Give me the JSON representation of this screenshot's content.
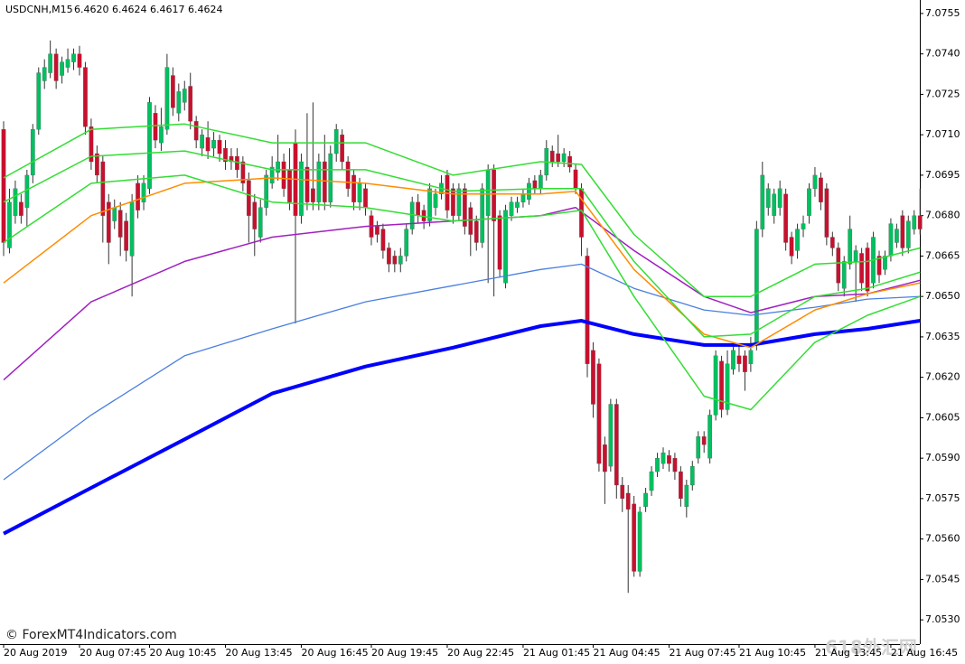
{
  "chart_data": {
    "type": "candlestick",
    "title": "USDCNH,M15",
    "quote": [
      "6.4620",
      "6.4624",
      "6.4617",
      "6.4624"
    ],
    "watermark": "© ForexMT4Indicators.com",
    "logo": "618外汇网",
    "up_color": "#00c060",
    "down_color": "#c8102e",
    "wick_color": "#333333",
    "ylim": [
      7.0521,
      7.076
    ],
    "yticks": [
      {
        "value": 7.053,
        "label": "7.0530"
      },
      7.0545,
      {
        "value": 7.056,
        "label": "7.0560"
      },
      7.0575,
      {
        "value": 7.059,
        "label": "7.0590"
      },
      7.0605,
      {
        "value": 7.062,
        "label": "7.0620"
      },
      7.0635,
      {
        "value": 7.065,
        "label": "7.0650"
      },
      7.0665,
      {
        "value": 7.068,
        "label": "7.0680"
      },
      7.0695,
      {
        "value": 7.071,
        "label": "7.0710"
      },
      7.0725,
      {
        "value": 7.074,
        "label": "7.0740"
      },
      7.0755
    ],
    "categories": [
      "20 Aug 2019",
      null,
      null,
      null,
      null,
      null,
      null,
      null,
      null,
      null,
      null,
      null,
      null,
      "20 Aug 07:45",
      null,
      null,
      null,
      null,
      null,
      null,
      null,
      null,
      null,
      null,
      null,
      "20 Aug 10:45",
      null,
      null,
      null,
      null,
      null,
      null,
      null,
      null,
      null,
      null,
      null,
      null,
      "20 Aug 13:45",
      null,
      null,
      null,
      null,
      null,
      null,
      null,
      null,
      null,
      null,
      null,
      null,
      "20 Aug 16:45",
      null,
      null,
      null,
      null,
      null,
      null,
      null,
      null,
      null,
      null,
      null,
      "20 Aug 19:45",
      null,
      null,
      null,
      null,
      null,
      null,
      null,
      null,
      null,
      null,
      null,
      null,
      "20 Aug 22:45",
      null,
      null,
      null,
      null,
      null,
      null,
      null,
      null,
      null,
      null,
      null,
      null,
      "21 Aug 01:45",
      null,
      null,
      null,
      null,
      null,
      null,
      null,
      null,
      null,
      null,
      null,
      "21 Aug 04:45",
      null,
      null,
      null,
      null,
      null,
      null,
      null,
      null,
      null,
      null,
      null,
      null,
      "21 Aug 07:45",
      null,
      null,
      null,
      null,
      null,
      null,
      null,
      null,
      null,
      null,
      null,
      "21 Aug 10:45",
      null,
      null,
      null,
      null,
      null,
      null,
      null,
      null,
      null,
      null,
      null,
      null,
      "21 Aug 13:45",
      null,
      null,
      null,
      null,
      null,
      null,
      null,
      null,
      null,
      null,
      null,
      null,
      "21 Aug 16:45",
      null,
      null,
      null,
      null,
      null
    ],
    "ohlc": [
      [
        7.0712,
        7.0715,
        7.0665,
        7.067
      ],
      [
        7.0668,
        7.069,
        7.0666,
        7.0685
      ],
      [
        7.068,
        7.0693,
        7.0677,
        7.069
      ],
      [
        7.0685,
        7.0688,
        7.0677,
        7.068
      ],
      [
        7.0683,
        7.0697,
        7.0676,
        7.0695
      ],
      [
        7.0695,
        7.0714,
        7.0692,
        7.0712
      ],
      [
        7.0712,
        7.0735,
        7.071,
        7.0733
      ],
      [
        7.073,
        7.0738,
        7.0727,
        7.0735
      ],
      [
        7.0733,
        7.0745,
        7.0731,
        7.074
      ],
      [
        7.074,
        7.0742,
        7.0727,
        7.073
      ],
      [
        7.0732,
        7.0739,
        7.0729,
        7.0737
      ],
      [
        7.0735,
        7.0742,
        7.0733,
        7.0738
      ],
      [
        7.0737,
        7.0742,
        7.0734,
        7.074
      ],
      [
        7.074,
        7.0743,
        7.0732,
        7.0735
      ],
      [
        7.0735,
        7.0737,
        7.071,
        7.0713
      ],
      [
        7.0713,
        7.0716,
        7.0697,
        7.07
      ],
      [
        7.0703,
        7.0706,
        7.0692,
        7.0695
      ],
      [
        7.07,
        7.0702,
        7.067,
        7.068
      ],
      [
        7.0685,
        7.0688,
        7.0662,
        7.067
      ],
      [
        7.0678,
        7.0686,
        7.0675,
        7.0683
      ],
      [
        7.0682,
        7.0685,
        7.0665,
        7.0672
      ],
      [
        7.0678,
        7.0681,
        7.0663,
        7.0667
      ],
      [
        7.0665,
        7.0688,
        7.065,
        7.0685
      ],
      [
        7.0692,
        7.0695,
        7.0679,
        7.0682
      ],
      [
        7.0685,
        7.0695,
        7.0682,
        7.0692
      ],
      [
        7.069,
        7.0724,
        7.0688,
        7.0722
      ],
      [
        7.0718,
        7.0721,
        7.0705,
        7.0708
      ],
      [
        7.0707,
        7.072,
        7.0704,
        7.0713
      ],
      [
        7.0712,
        7.074,
        7.071,
        7.0735
      ],
      [
        7.0732,
        7.0735,
        7.0717,
        7.072
      ],
      [
        7.0718,
        7.0729,
        7.0715,
        7.0726
      ],
      [
        7.0722,
        7.073,
        7.0719,
        7.0727
      ],
      [
        7.0728,
        7.0733,
        7.0712,
        7.0715
      ],
      [
        7.0715,
        7.0717,
        7.0705,
        7.0708
      ],
      [
        7.0705,
        7.0712,
        7.0702,
        7.071
      ],
      [
        7.0709,
        7.0715,
        7.0701,
        7.0704
      ],
      [
        7.0705,
        7.0711,
        7.0702,
        7.0708
      ],
      [
        7.0708,
        7.071,
        7.07,
        7.0703
      ],
      [
        7.0705,
        7.0708,
        7.0697,
        7.07
      ],
      [
        7.0702,
        7.0705,
        7.0697,
        7.07
      ],
      [
        7.0702,
        7.0705,
        7.0694,
        7.0697
      ],
      [
        7.07,
        7.0702,
        7.0689,
        7.0692
      ],
      [
        7.0693,
        7.0696,
        7.067,
        7.068
      ],
      [
        7.0685,
        7.0688,
        7.0665,
        7.0675
      ],
      [
        7.0672,
        7.0686,
        7.067,
        7.0683
      ],
      [
        7.0683,
        7.0697,
        7.068,
        7.0695
      ],
      [
        7.0692,
        7.0702,
        7.069,
        7.0698
      ],
      [
        7.0696,
        7.071,
        7.0693,
        7.07
      ],
      [
        7.07,
        7.0703,
        7.0687,
        7.069
      ],
      [
        7.0697,
        7.0705,
        7.0682,
        7.0685
      ],
      [
        7.0707,
        7.0712,
        7.064,
        7.068
      ],
      [
        7.068,
        7.0703,
        7.0677,
        7.07
      ],
      [
        7.0698,
        7.0718,
        7.0682,
        7.0685
      ],
      [
        7.069,
        7.0722,
        7.0682,
        7.0685
      ],
      [
        7.0685,
        7.0703,
        7.0682,
        7.07
      ],
      [
        7.07,
        7.071,
        7.0682,
        7.0685
      ],
      [
        7.0685,
        7.0706,
        7.0683,
        7.0703
      ],
      [
        7.0703,
        7.0714,
        7.07,
        7.0712
      ],
      [
        7.071,
        7.0712,
        7.0697,
        7.07
      ],
      [
        7.07,
        7.0702,
        7.0687,
        7.069
      ],
      [
        7.0695,
        7.0697,
        7.0682,
        7.0685
      ],
      [
        7.0685,
        7.0694,
        7.0682,
        7.0692
      ],
      [
        7.069,
        7.0692,
        7.068,
        7.0683
      ],
      [
        7.068,
        7.0682,
        7.0669,
        7.0672
      ],
      [
        7.0676,
        7.0678,
        7.067,
        7.0673
      ],
      [
        7.0675,
        7.0677,
        7.0664,
        7.0667
      ],
      [
        7.0668,
        7.067,
        7.0659,
        7.0662
      ],
      [
        7.0665,
        7.0667,
        7.0659,
        7.0662
      ],
      [
        7.0662,
        7.0668,
        7.0659,
        7.0665
      ],
      [
        7.0665,
        7.0677,
        7.0663,
        7.0675
      ],
      [
        7.0675,
        7.0687,
        7.0673,
        7.0685
      ],
      [
        7.0685,
        7.0688,
        7.0677,
        7.068
      ],
      [
        7.0682,
        7.0684,
        7.0675,
        7.0678
      ],
      [
        7.0678,
        7.0692,
        7.0676,
        7.069
      ],
      [
        7.0683,
        7.069,
        7.068,
        7.0688
      ],
      [
        7.0688,
        7.0695,
        7.0686,
        7.0692
      ],
      [
        7.0695,
        7.0697,
        7.0679,
        7.0682
      ],
      [
        7.069,
        7.0692,
        7.0677,
        7.068
      ],
      [
        7.068,
        7.0692,
        7.0678,
        7.069
      ],
      [
        7.069,
        7.0692,
        7.0673,
        7.0676
      ],
      [
        7.0683,
        7.0685,
        7.0665,
        7.0673
      ],
      [
        7.0678,
        7.068,
        7.0667,
        7.067
      ],
      [
        7.067,
        7.0692,
        7.0668,
        7.069
      ],
      [
        7.068,
        7.0699,
        7.0655,
        7.0697
      ],
      [
        7.0697,
        7.0699,
        7.065,
        7.0678
      ],
      [
        7.068,
        7.0682,
        7.0657,
        7.066
      ],
      [
        7.0655,
        7.0684,
        7.0653,
        7.0682
      ],
      [
        7.068,
        7.0687,
        7.0678,
        7.0685
      ],
      [
        7.0683,
        7.0687,
        7.0681,
        7.0685
      ],
      [
        7.0685,
        7.069,
        7.0683,
        7.0688
      ],
      [
        7.0686,
        7.0694,
        7.0684,
        7.0692
      ],
      [
        7.0693,
        7.0695,
        7.0688,
        7.069
      ],
      [
        7.069,
        7.0697,
        7.0688,
        7.0695
      ],
      [
        7.0695,
        7.0708,
        7.0693,
        7.0705
      ],
      [
        7.0704,
        7.0706,
        7.0698,
        7.07
      ],
      [
        7.0703,
        7.071,
        7.0698,
        7.07
      ],
      [
        7.07,
        7.0705,
        7.0698,
        7.0703
      ],
      [
        7.0702,
        7.0704,
        7.0696,
        7.0698
      ],
      [
        7.0697,
        7.0699,
        7.0688,
        7.069
      ],
      [
        7.069,
        7.0692,
        7.0665,
        7.0672
      ],
      [
        7.0665,
        7.0668,
        7.062,
        7.0625
      ],
      [
        7.063,
        7.0633,
        7.0605,
        7.061
      ],
      [
        7.0625,
        7.0627,
        7.0585,
        7.0588
      ],
      [
        7.0595,
        7.0598,
        7.0573,
        7.0585
      ],
      [
        7.0587,
        7.0612,
        7.0585,
        7.061
      ],
      [
        7.061,
        7.0612,
        7.0575,
        7.058
      ],
      [
        7.058,
        7.0583,
        7.057,
        7.0575
      ],
      [
        7.0577,
        7.058,
        7.054,
        7.0571
      ],
      [
        7.0573,
        7.0576,
        7.0546,
        7.0548
      ],
      [
        7.0548,
        7.0572,
        7.0546,
        7.057
      ],
      [
        7.0572,
        7.0579,
        7.057,
        7.0577
      ],
      [
        7.0578,
        7.0587,
        7.0576,
        7.0585
      ],
      [
        7.0585,
        7.0592,
        7.0583,
        7.059
      ],
      [
        7.0588,
        7.0594,
        7.0586,
        7.0592
      ],
      [
        7.0591,
        7.0593,
        7.0585,
        7.0588
      ],
      [
        7.059,
        7.0592,
        7.0582,
        7.0585
      ],
      [
        7.0585,
        7.0587,
        7.0572,
        7.0575
      ],
      [
        7.0572,
        7.0582,
        7.0568,
        7.058
      ],
      [
        7.058,
        7.0589,
        7.0578,
        7.0587
      ],
      [
        7.059,
        7.06,
        7.0588,
        7.0598
      ],
      [
        7.0598,
        7.06,
        7.0592,
        7.0595
      ],
      [
        7.059,
        7.0608,
        7.0588,
        7.0606
      ],
      [
        7.0606,
        7.063,
        7.0604,
        7.0628
      ],
      [
        7.0626,
        7.0628,
        7.0605,
        7.0608
      ],
      [
        7.0608,
        7.063,
        7.0606,
        7.0625
      ],
      [
        7.0623,
        7.0632,
        7.0621,
        7.063
      ],
      [
        7.0628,
        7.0632,
        7.0622,
        7.0625
      ],
      [
        7.0628,
        7.063,
        7.0615,
        7.0622
      ],
      [
        7.0625,
        7.0635,
        7.0622,
        7.063
      ],
      [
        7.0632,
        7.0678,
        7.063,
        7.0675
      ],
      [
        7.0675,
        7.07,
        7.0672,
        7.0695
      ],
      [
        7.0683,
        7.0692,
        7.068,
        7.069
      ],
      [
        7.068,
        7.069,
        7.0677,
        7.0688
      ],
      [
        7.0683,
        7.0693,
        7.068,
        7.069
      ],
      [
        7.0688,
        7.069,
        7.0667,
        7.067
      ],
      [
        7.0672,
        7.0674,
        7.0662,
        7.0665
      ],
      [
        7.0667,
        7.0677,
        7.0664,
        7.0675
      ],
      [
        7.0675,
        7.068,
        7.0672,
        7.0677
      ],
      [
        7.068,
        7.0692,
        7.0677,
        7.069
      ],
      [
        7.069,
        7.0698,
        7.0687,
        7.0695
      ],
      [
        7.0694,
        7.0696,
        7.0682,
        7.0685
      ],
      [
        7.069,
        7.0692,
        7.0669,
        7.0672
      ],
      [
        7.0672,
        7.0674,
        7.0665,
        7.0668
      ],
      [
        7.0668,
        7.067,
        7.0652,
        7.0655
      ],
      [
        7.0653,
        7.0665,
        7.065,
        7.0663
      ],
      [
        7.0662,
        7.068,
        7.066,
        7.0675
      ],
      [
        7.0663,
        7.0669,
        7.0648,
        7.0667
      ],
      [
        7.0666,
        7.0668,
        7.0652,
        7.0655
      ],
      [
        7.0668,
        7.067,
        7.065,
        7.0652
      ],
      [
        7.0655,
        7.0674,
        7.0653,
        7.0672
      ],
      [
        7.0665,
        7.0667,
        7.0655,
        7.0658
      ],
      [
        7.066,
        7.0667,
        7.0658,
        7.0665
      ],
      [
        7.0665,
        7.0679,
        7.0663,
        7.0677
      ],
      [
        7.067,
        7.0677,
        7.0668,
        7.0675
      ],
      [
        7.068,
        7.0682,
        7.0665,
        7.0668
      ],
      [
        7.0668,
        7.068,
        7.0666,
        7.0678
      ],
      [
        7.0675,
        7.0682,
        7.0673,
        7.068
      ],
      [
        7.068,
        7.069,
        7.0673,
        7.0675
      ]
    ],
    "lines": [
      {
        "color": "#0000ff",
        "width": 4,
        "x": [
          0,
          15,
          31,
          46,
          62,
          77,
          92,
          99,
          108,
          120,
          128,
          139,
          148,
          157
        ],
        "values": [
          7.0562,
          7.0579,
          7.0597,
          7.0614,
          7.0624,
          7.0631,
          7.0639,
          7.0641,
          7.0636,
          7.0632,
          7.0632,
          7.0636,
          7.0638,
          7.0641
        ]
      },
      {
        "color": "#4a7fe0",
        "width": 1.3,
        "x": [
          0,
          15,
          31,
          46,
          62,
          77,
          92,
          99,
          108,
          120,
          128,
          139,
          148,
          157
        ],
        "values": [
          7.0582,
          7.0606,
          7.0628,
          7.0638,
          7.0648,
          7.0654,
          7.066,
          7.0662,
          7.0653,
          7.0645,
          7.0643,
          7.0646,
          7.0649,
          7.065
        ]
      },
      {
        "color": "#a020c0",
        "width": 1.5,
        "x": [
          0,
          15,
          31,
          46,
          62,
          77,
          92,
          98,
          108,
          120,
          128,
          139,
          148,
          157
        ],
        "values": [
          7.0619,
          7.0648,
          7.0663,
          7.0672,
          7.0676,
          7.0678,
          7.068,
          7.0683,
          7.0667,
          7.065,
          7.0644,
          7.065,
          7.0651,
          7.0656
        ]
      },
      {
        "color": "#ff8c00",
        "width": 1.5,
        "x": [
          0,
          15,
          31,
          46,
          62,
          77,
          92,
          98,
          108,
          120,
          128,
          139,
          148,
          157
        ],
        "values": [
          7.0655,
          7.068,
          7.0692,
          7.0694,
          7.0692,
          7.0688,
          7.0688,
          7.0689,
          7.066,
          7.0636,
          7.0631,
          7.0645,
          7.0651,
          7.0655
        ]
      },
      {
        "color": "#33dd33",
        "width": 1.5,
        "x": [
          0,
          15,
          31,
          46,
          62,
          77,
          92,
          99,
          108,
          120,
          128,
          139,
          148,
          157
        ],
        "values": [
          7.0694,
          7.0712,
          7.0714,
          7.0707,
          7.0707,
          7.0695,
          7.07,
          7.0699,
          7.0673,
          7.065,
          7.065,
          7.0662,
          7.0663,
          7.0668
        ]
      },
      {
        "color": "#33dd33",
        "width": 1.5,
        "x": [
          0,
          15,
          31,
          46,
          62,
          77,
          92,
          99,
          108,
          120,
          128,
          139,
          148,
          157
        ],
        "values": [
          7.0685,
          7.0702,
          7.0704,
          7.0697,
          7.0697,
          7.0689,
          7.069,
          7.069,
          7.0663,
          7.0635,
          7.0636,
          7.065,
          7.0653,
          7.0659
        ]
      },
      {
        "color": "#33dd33",
        "width": 1.5,
        "x": [
          0,
          15,
          31,
          46,
          62,
          77,
          92,
          99,
          108,
          120,
          128,
          139,
          148,
          157
        ],
        "values": [
          7.067,
          7.0692,
          7.0695,
          7.0685,
          7.0683,
          7.0678,
          7.068,
          7.0682,
          7.065,
          7.0613,
          7.0608,
          7.0633,
          7.0643,
          7.065
        ]
      }
    ]
  }
}
